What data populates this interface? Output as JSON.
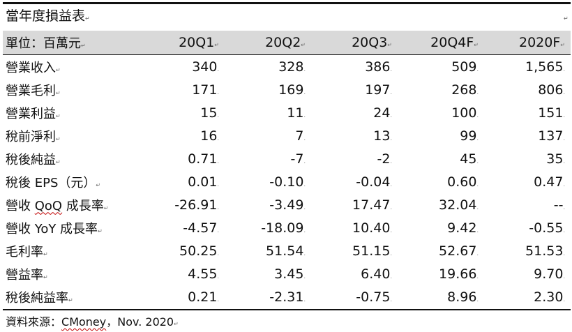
{
  "title": "當年度損益表",
  "mark": "↵",
  "header": {
    "unit_label": "單位：百萬元",
    "columns": [
      "20Q1",
      "20Q2",
      "20Q3",
      "20Q4F",
      "2020F"
    ]
  },
  "rows": [
    {
      "label": "營業收入",
      "values": [
        "340",
        "328",
        "386",
        "509",
        "1,565"
      ]
    },
    {
      "label": "營業毛利",
      "values": [
        "171",
        "169",
        "197",
        "268",
        "806"
      ]
    },
    {
      "label": "營業利益",
      "values": [
        "15",
        "11",
        "24",
        "100",
        "151"
      ]
    },
    {
      "label": "稅前淨利",
      "values": [
        "16",
        "7",
        "13",
        "99",
        "137"
      ]
    },
    {
      "label": "稅後純益",
      "values": [
        "0.71",
        "-7",
        "-2",
        "45",
        "35"
      ]
    },
    {
      "label": "稅後 EPS（元）",
      "values": [
        "0.01",
        "-0.10",
        "-0.04",
        "0.60",
        "0.47"
      ]
    },
    {
      "label_pre": "營收 ",
      "label_term": "QoQ",
      "label_post": " 成長率",
      "values": [
        "-26.91",
        "-3.49",
        "17.47",
        "32.04",
        "--"
      ]
    },
    {
      "label": "營收 YoY 成長率",
      "values": [
        "-4.57",
        "-18.09",
        "10.40",
        "9.42",
        "-0.55"
      ]
    },
    {
      "label": "毛利率",
      "values": [
        "50.25",
        "51.54",
        "51.15",
        "52.67",
        "51.53"
      ]
    },
    {
      "label": "營益率",
      "values": [
        "4.55",
        "3.45",
        "6.40",
        "19.66",
        "9.70"
      ]
    },
    {
      "label": "稅後純益率",
      "values": [
        "0.21",
        "-2.31",
        "-0.75",
        "8.96",
        "2.30"
      ]
    }
  ],
  "footer": {
    "prefix": "資料來源：",
    "source": "CMoney",
    "suffix": "，Nov. 2020"
  }
}
